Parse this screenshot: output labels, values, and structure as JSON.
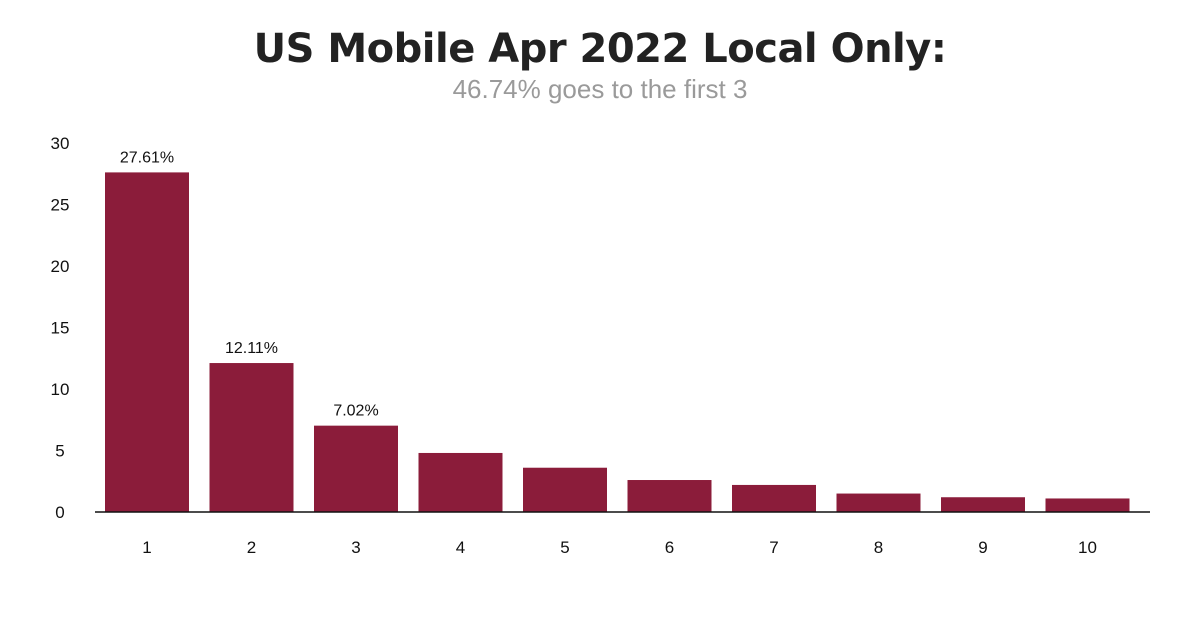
{
  "chart_data": {
    "type": "bar",
    "title": "US Mobile Apr 2022 Local Only:",
    "subtitle": "46.74% goes to the first 3",
    "categories": [
      "1",
      "2",
      "3",
      "4",
      "5",
      "6",
      "7",
      "8",
      "9",
      "10"
    ],
    "values": [
      27.61,
      12.11,
      7.02,
      4.8,
      3.6,
      2.6,
      2.2,
      1.5,
      1.2,
      1.1
    ],
    "data_labels": [
      "27.61%",
      "12.11%",
      "7.02%",
      "",
      "",
      "",
      "",
      "",
      "",
      ""
    ],
    "yticks": [
      0,
      5,
      10,
      15,
      20,
      25,
      30
    ],
    "ylim": [
      0,
      30
    ],
    "xlabel": "",
    "ylabel": "",
    "grid": false,
    "legend": "none",
    "bar_color": "#8b1c3a"
  }
}
